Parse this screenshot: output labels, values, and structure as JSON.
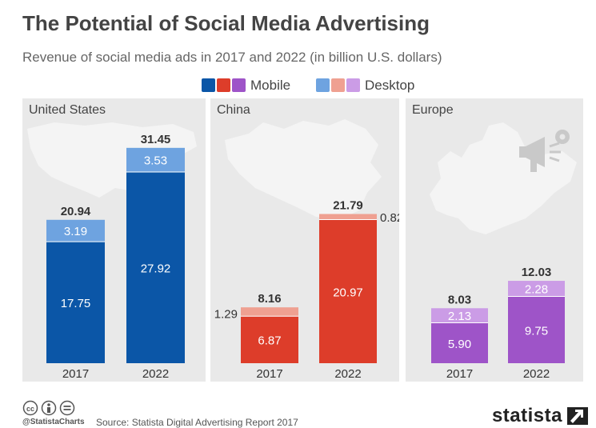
{
  "title": "The Potential of Social Media Advertising",
  "subtitle": "Revenue of social media ads in 2017 and 2022 (in billion U.S. dollars)",
  "legend": {
    "mobile": "Mobile",
    "desktop": "Desktop"
  },
  "colors": {
    "us_mobile": "#0b56a7",
    "us_desktop": "#6ea3e0",
    "china_mobile": "#dd3d2a",
    "china_desktop": "#efa091",
    "europe_mobile": "#9e54c8",
    "europe_desktop": "#cb9ce6",
    "panel_bg": "#e9e9e9"
  },
  "footer": {
    "handle": "@StatistaCharts",
    "source": "Source: Statista Digital Advertising Report 2017",
    "brand": "statista",
    "icons": [
      "cc-icon",
      "attribution-icon",
      "no-derivatives-icon"
    ]
  },
  "chart_data": [
    {
      "type": "bar",
      "title": "United States",
      "categories": [
        "2017",
        "2022"
      ],
      "series": [
        {
          "name": "Mobile",
          "values": [
            17.75,
            27.92
          ]
        },
        {
          "name": "Desktop",
          "values": [
            3.19,
            3.53
          ]
        }
      ],
      "totals": [
        20.94,
        31.45
      ],
      "value_labels": [
        [
          "17.75",
          "27.92"
        ],
        [
          "3.19",
          "3.53"
        ]
      ],
      "total_labels": [
        "20.94",
        "31.45"
      ],
      "ylim": [
        0,
        34
      ]
    },
    {
      "type": "bar",
      "title": "China",
      "categories": [
        "2017",
        "2022"
      ],
      "series": [
        {
          "name": "Mobile",
          "values": [
            6.87,
            20.97
          ]
        },
        {
          "name": "Desktop",
          "values": [
            1.29,
            0.82
          ]
        }
      ],
      "totals": [
        8.16,
        21.79
      ],
      "value_labels": [
        [
          "6.87",
          "20.97"
        ],
        [
          "1.29",
          "0.82"
        ]
      ],
      "total_labels": [
        "8.16",
        "21.79"
      ],
      "ylim": [
        0,
        34
      ]
    },
    {
      "type": "bar",
      "title": "Europe",
      "categories": [
        "2017",
        "2022"
      ],
      "series": [
        {
          "name": "Mobile",
          "values": [
            5.9,
            9.75
          ]
        },
        {
          "name": "Desktop",
          "values": [
            2.13,
            2.28
          ]
        }
      ],
      "totals": [
        8.03,
        12.03
      ],
      "value_labels": [
        [
          "5.90",
          "9.75"
        ],
        [
          "2.13",
          "2.28"
        ]
      ],
      "total_labels": [
        "8.03",
        "12.03"
      ],
      "ylim": [
        0,
        34
      ]
    }
  ]
}
